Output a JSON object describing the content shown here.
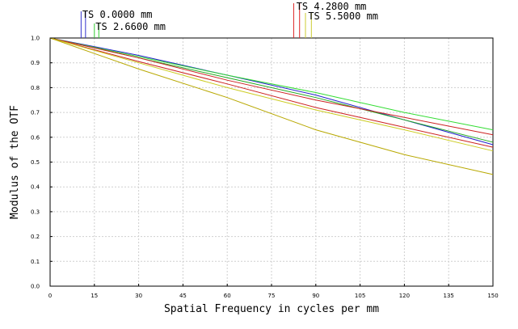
{
  "chart_data": {
    "type": "line",
    "title": "",
    "xlabel": "Spatial Frequency in cycles per mm",
    "ylabel": "Modulus of the OTF",
    "xlim": [
      0,
      150
    ],
    "ylim": [
      0,
      1.0
    ],
    "xticks": [
      "0",
      "15",
      "30",
      "45",
      "60",
      "75",
      "90",
      "105",
      "120",
      "135",
      "150"
    ],
    "yticks": [
      "0.0",
      "0.1",
      "0.2",
      "0.3",
      "0.4",
      "0.5",
      "0.6",
      "0.7",
      "0.8",
      "0.9",
      "1.0"
    ],
    "grid": true,
    "annotations": [
      {
        "text": "TS 0.0000 mm",
        "colors": [
          "#3333cc",
          "#3333cc"
        ],
        "x": [
          10.5,
          12.0
        ]
      },
      {
        "text": "TS 2.6600 mm",
        "colors": [
          "#33cc33",
          "#33cc33"
        ],
        "x": [
          15.0,
          16.5
        ]
      },
      {
        "text": "TS 4.2800 mm",
        "colors": [
          "#dd2222",
          "#dd2222"
        ],
        "x": [
          82.5,
          84.5
        ]
      },
      {
        "text": "TS 5.5000 mm",
        "colors": [
          "#cccc33",
          "#cccc33"
        ],
        "x": [
          86.5,
          88.5
        ]
      }
    ],
    "series": [
      {
        "color": "#2222cc",
        "x": [
          0,
          30,
          60,
          90,
          120,
          150
        ],
        "y": [
          1.0,
          0.93,
          0.85,
          0.77,
          0.67,
          0.57
        ]
      },
      {
        "color": "#22aa22",
        "x": [
          0,
          30,
          60,
          90,
          120,
          150
        ],
        "y": [
          1.0,
          0.92,
          0.84,
          0.76,
          0.67,
          0.58
        ]
      },
      {
        "color": "#33dd33",
        "x": [
          0,
          30,
          60,
          90,
          120,
          150
        ],
        "y": [
          1.0,
          0.925,
          0.85,
          0.78,
          0.7,
          0.63
        ]
      },
      {
        "color": "#cc2222",
        "x": [
          0,
          30,
          60,
          90,
          120,
          150
        ],
        "y": [
          1.0,
          0.92,
          0.83,
          0.75,
          0.68,
          0.61
        ]
      },
      {
        "color": "#cc2222",
        "x": [
          0,
          30,
          60,
          90,
          120,
          150
        ],
        "y": [
          1.0,
          0.905,
          0.815,
          0.72,
          0.64,
          0.56
        ]
      },
      {
        "color": "#cccc22",
        "x": [
          0,
          30,
          60,
          90,
          120,
          150
        ],
        "y": [
          1.0,
          0.9,
          0.8,
          0.71,
          0.63,
          0.545
        ]
      },
      {
        "color": "#b8a800",
        "x": [
          0,
          30,
          60,
          90,
          120,
          150
        ],
        "y": [
          1.0,
          0.875,
          0.76,
          0.63,
          0.53,
          0.45
        ]
      }
    ]
  }
}
